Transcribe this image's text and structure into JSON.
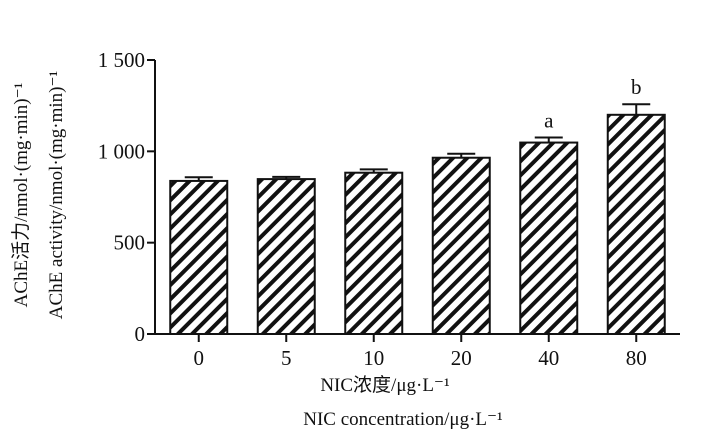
{
  "chart_data": {
    "type": "bar",
    "categories": [
      "0",
      "5",
      "10",
      "20",
      "40",
      "80"
    ],
    "values": [
      838,
      848,
      883,
      965,
      1048,
      1200
    ],
    "errors": [
      20,
      12,
      18,
      22,
      28,
      58
    ],
    "annotations": [
      "",
      "",
      "",
      "",
      "a",
      "b"
    ],
    "xlabel_cn": "NIC浓度/μg·L⁻¹",
    "xlabel_en": "NIC  concentration/μg·L⁻¹",
    "ylabel_cn": "AChE活力/nmol·(mg·min)⁻¹",
    "ylabel_en": "AChE  activity/nmol·(mg·min)⁻¹",
    "ylim": [
      0,
      1500
    ],
    "yticks": [
      0,
      500,
      1000,
      1500
    ],
    "ytick_labels": [
      "0",
      "500",
      "1 000",
      "1 500"
    ],
    "bar_fill": "diagonal-hatch",
    "bar_color": "#111111",
    "grid": false,
    "legend": "none"
  }
}
